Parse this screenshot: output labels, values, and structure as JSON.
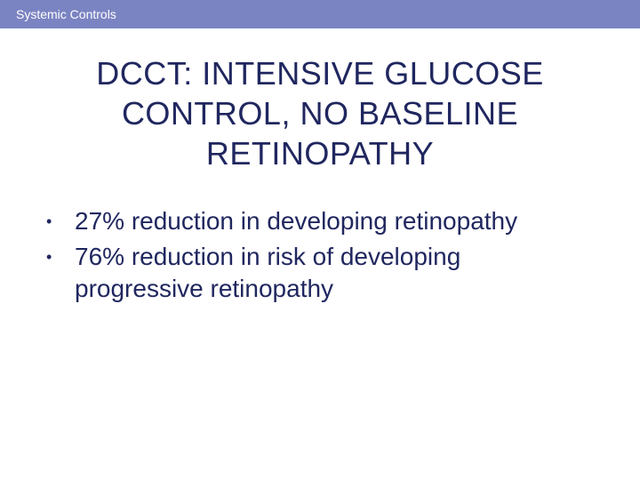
{
  "colors": {
    "header_bg": "#7b84c2",
    "header_text": "#ffffff",
    "title_text": "#20275f",
    "body_text": "#20275f",
    "background": "#ffffff"
  },
  "header": {
    "label": "Systemic Controls"
  },
  "title": {
    "text": "DCCT: INTENSIVE GLUCOSE CONTROL, NO BASELINE RETINOPATHY"
  },
  "bullets": [
    {
      "text": "27% reduction in developing retinopathy"
    },
    {
      "text": "76% reduction in risk of developing progressive retinopathy"
    }
  ],
  "typography": {
    "header_fontsize": 14,
    "title_fontsize": 36,
    "body_fontsize": 28
  }
}
